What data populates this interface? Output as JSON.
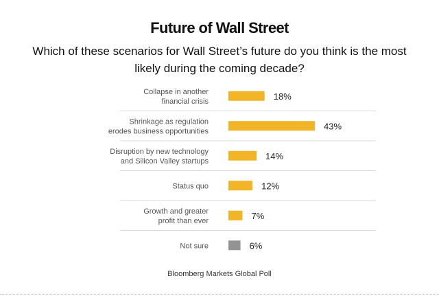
{
  "chart_data": {
    "type": "bar",
    "orientation": "horizontal",
    "title": "Future of Wall Street",
    "subtitle": "Which of these scenarios for Wall Street’s future do you think is the most likely during the coming decade?",
    "categories": [
      "Collapse in another financial crisis",
      "Shrinkage as regulation erodes business opportunities",
      "Disruption by new technology and Silicon Valley startups",
      "Status quo",
      "Growth and greater profit than ever",
      "Not sure"
    ],
    "category_lines": [
      [
        "Collapse in another",
        "financial crisis"
      ],
      [
        "Shrinkage as regulation",
        "erodes business opportunities"
      ],
      [
        "Disruption by new technology",
        "and Silicon Valley startups"
      ],
      [
        "Status quo"
      ],
      [
        "Growth and greater",
        "profit than ever"
      ],
      [
        "Not sure"
      ]
    ],
    "values": [
      18,
      43,
      14,
      12,
      7,
      6
    ],
    "value_labels": [
      "18%",
      "43%",
      "14%",
      "12%",
      "7%",
      "6%"
    ],
    "unit": "%",
    "bar_colors": [
      "#f3b528",
      "#f3b528",
      "#f3b528",
      "#f3b528",
      "#f3b528",
      "#939393"
    ],
    "source": "Bloomberg Markets Global Poll",
    "grid": false,
    "legend": "none"
  }
}
